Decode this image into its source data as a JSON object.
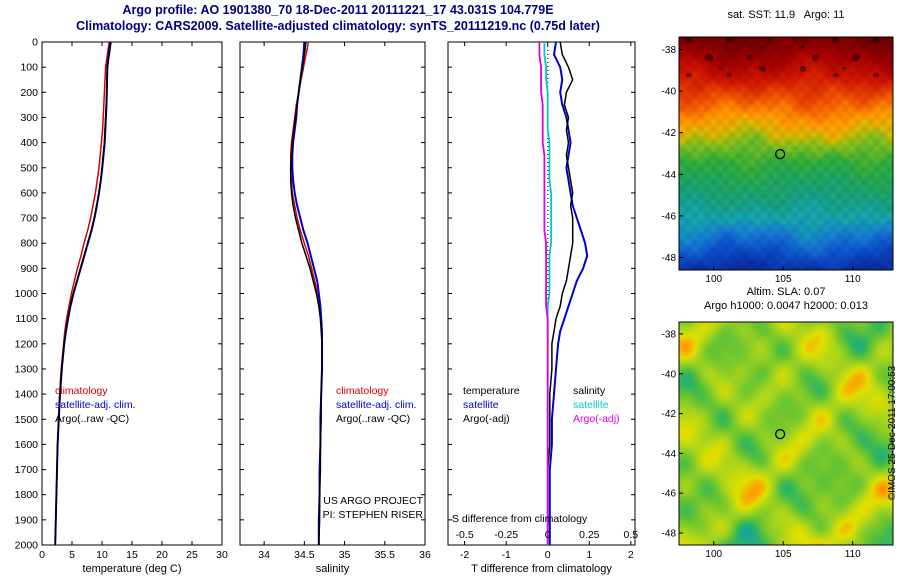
{
  "header": {
    "title_line1": "Argo profile: AO 1901380_70 18-Dec-2011 20111221_17 43.031S 104.779E",
    "title_line2": "Climatology: CARS2009. Satellite-adjusted climatology: synTS_20111219.nc (0.75d later)"
  },
  "watermark": "©IMOS 25-Dec-2011 17:00:53",
  "chart_data": [
    {
      "id": "temperature_profile",
      "type": "line",
      "xlabel": "temperature (deg C)",
      "xlim": [
        0,
        30
      ],
      "xticks": [
        0,
        5,
        10,
        15,
        20,
        25,
        30
      ],
      "ylim": [
        0,
        2000
      ],
      "y_inverted": true,
      "yticks": [
        0,
        100,
        200,
        300,
        400,
        500,
        600,
        700,
        800,
        900,
        1000,
        1100,
        1200,
        1300,
        1400,
        1500,
        1600,
        1700,
        1800,
        1900,
        2000
      ],
      "depths": [
        0,
        50,
        100,
        150,
        200,
        250,
        300,
        350,
        400,
        450,
        500,
        550,
        600,
        650,
        700,
        750,
        800,
        850,
        900,
        950,
        1000,
        1050,
        1100,
        1150,
        1200,
        1300,
        1400,
        1500,
        1600,
        1700,
        1800,
        1900,
        2000
      ],
      "series": [
        {
          "name": "climatology",
          "color": "#d40000",
          "lw": 1.5,
          "values": [
            11.2,
            10.9,
            10.6,
            10.5,
            10.4,
            10.3,
            10.2,
            10.1,
            9.9,
            9.7,
            9.5,
            9.2,
            8.9,
            8.5,
            8.1,
            7.6,
            7.0,
            6.5,
            5.9,
            5.4,
            4.9,
            4.5,
            4.1,
            3.8,
            3.6,
            3.2,
            2.95,
            2.75,
            2.6,
            2.5,
            2.4,
            2.3,
            2.2
          ]
        },
        {
          "name": "satellite-adj. clim.",
          "color": "#0000cc",
          "lw": 2,
          "values": [
            11.4,
            11.1,
            10.9,
            10.85,
            10.8,
            10.75,
            10.65,
            10.55,
            10.45,
            10.25,
            10.05,
            9.8,
            9.5,
            9.15,
            8.75,
            8.25,
            7.65,
            7.05,
            6.45,
            5.85,
            5.25,
            4.75,
            4.35,
            4.0,
            3.7,
            3.3,
            3.0,
            2.8,
            2.6,
            2.5,
            2.4,
            2.3,
            2.2
          ]
        },
        {
          "name": "Argo(..raw -QC)",
          "color": "#000000",
          "lw": 1.5,
          "values": [
            11.5,
            11.2,
            10.9,
            10.8,
            10.8,
            10.7,
            10.6,
            10.5,
            10.4,
            10.2,
            10.0,
            9.8,
            9.5,
            9.1,
            8.7,
            8.2,
            7.6,
            7.0,
            6.4,
            5.8,
            5.2,
            4.7,
            4.3,
            4.0,
            3.7,
            3.3,
            3.0,
            2.8,
            2.6,
            2.5,
            2.4,
            2.3,
            2.2
          ]
        }
      ]
    },
    {
      "id": "salinity_profile",
      "type": "line",
      "xlabel": "salinity",
      "xlim": [
        33.7,
        36.0
      ],
      "xticks": [
        34,
        34.5,
        35,
        35.5,
        36
      ],
      "ylim": [
        0,
        2000
      ],
      "y_inverted": true,
      "yticks": [
        0,
        100,
        200,
        300,
        400,
        500,
        600,
        700,
        800,
        900,
        1000,
        1100,
        1200,
        1300,
        1400,
        1500,
        1600,
        1700,
        1800,
        1900,
        2000
      ],
      "depths": [
        0,
        50,
        100,
        150,
        200,
        250,
        300,
        350,
        400,
        450,
        500,
        550,
        600,
        650,
        700,
        750,
        800,
        850,
        900,
        950,
        1000,
        1050,
        1100,
        1150,
        1200,
        1300,
        1400,
        1500,
        1600,
        1700,
        1800,
        1900,
        2000
      ],
      "annotations": [
        "US ARGO PROJECT",
        "PI: STEPHEN RISER"
      ],
      "series": [
        {
          "name": "climatology",
          "color": "#d40000",
          "lw": 1.5,
          "values": [
            34.55,
            34.52,
            34.49,
            34.46,
            34.43,
            34.4,
            34.38,
            34.36,
            34.34,
            34.33,
            34.33,
            34.34,
            34.35,
            34.38,
            34.41,
            34.45,
            34.5,
            34.55,
            34.59,
            34.63,
            34.66,
            34.69,
            34.71,
            34.72,
            34.72,
            34.72,
            34.71,
            34.7,
            34.7,
            34.69,
            34.69,
            34.68,
            34.68
          ]
        },
        {
          "name": "satellite-adj. clim.",
          "color": "#0000cc",
          "lw": 2,
          "values": [
            34.5,
            34.49,
            34.47,
            34.45,
            34.43,
            34.41,
            34.4,
            34.38,
            34.36,
            34.35,
            34.35,
            34.36,
            34.38,
            34.41,
            34.45,
            34.49,
            34.54,
            34.58,
            34.62,
            34.66,
            34.68,
            34.7,
            34.71,
            34.72,
            34.72,
            34.72,
            34.71,
            34.7,
            34.7,
            34.69,
            34.69,
            34.68,
            34.68
          ]
        },
        {
          "name": "Argo(..raw -QC)",
          "color": "#000000",
          "lw": 1.5,
          "values": [
            34.52,
            34.5,
            34.48,
            34.45,
            34.43,
            34.41,
            34.39,
            34.37,
            34.35,
            34.34,
            34.33,
            34.33,
            34.34,
            34.36,
            34.39,
            34.43,
            34.47,
            34.52,
            34.57,
            34.61,
            34.65,
            34.68,
            34.7,
            34.71,
            34.72,
            34.72,
            34.71,
            34.71,
            34.7,
            34.7,
            34.69,
            34.69,
            34.68
          ]
        }
      ]
    },
    {
      "id": "difference_profile",
      "type": "line",
      "xlabel": "T difference from climatology",
      "xlim": [
        -2.4,
        2.1
      ],
      "xticks": [
        -2,
        -1,
        0,
        1,
        2
      ],
      "ylim": [
        0,
        2000
      ],
      "y_inverted": true,
      "zero_line": true,
      "yticks": [
        0,
        100,
        200,
        300,
        400,
        500,
        600,
        700,
        800,
        900,
        1000,
        1100,
        1200,
        1300,
        1400,
        1500,
        1600,
        1700,
        1800,
        1900,
        2000
      ],
      "depths": [
        0,
        50,
        100,
        150,
        200,
        250,
        300,
        350,
        400,
        450,
        500,
        550,
        600,
        650,
        700,
        750,
        800,
        850,
        900,
        950,
        1000,
        1050,
        1100,
        1150,
        1200,
        1300,
        1400,
        1500,
        1600,
        1700,
        1800,
        1900,
        2000
      ],
      "s_axis": {
        "label": "S difference from climatology",
        "scale": 4,
        "ticks": [
          -0.5,
          -0.25,
          0,
          0.25,
          0.5
        ]
      },
      "legend_headers": [
        "temperature",
        "salinity"
      ],
      "series": [
        {
          "name": "satellite",
          "group": "temperature",
          "color": "#0000cc",
          "scale": 1,
          "lw": 2,
          "values": [
            0.2,
            0.15,
            0.3,
            0.35,
            0.3,
            0.35,
            0.45,
            0.5,
            0.55,
            0.5,
            0.45,
            0.5,
            0.55,
            0.6,
            0.7,
            0.8,
            0.9,
            0.95,
            0.85,
            0.7,
            0.6,
            0.5,
            0.4,
            0.3,
            0.25,
            0.2,
            0.15,
            0.1,
            0.1,
            0.05,
            0.05,
            0.05,
            0.05
          ]
        },
        {
          "name": "Argo(-adj)",
          "group": "temperature",
          "color": "#000000",
          "scale": 1,
          "lw": 1.5,
          "values": [
            0.3,
            0.35,
            0.5,
            0.6,
            0.45,
            0.4,
            0.5,
            0.45,
            0.5,
            0.45,
            0.5,
            0.55,
            0.6,
            0.55,
            0.6,
            0.6,
            0.6,
            0.55,
            0.5,
            0.45,
            0.35,
            0.3,
            0.2,
            0.15,
            0.1,
            0.1,
            0.05,
            0.05,
            0.05,
            0.0,
            0.0,
            0.0,
            0.0
          ]
        },
        {
          "name": "satellite",
          "group": "salinity",
          "color": "#00c8c8",
          "scale": 4,
          "lw": 1.8,
          "values": [
            -0.02,
            -0.02,
            -0.01,
            -0.01,
            0,
            0,
            0,
            0,
            0.01,
            0.01,
            0.01,
            0.01,
            0.02,
            0.02,
            0.02,
            0.02,
            0.02,
            0.01,
            0.01,
            0.01,
            0.01,
            0,
            0,
            0,
            0,
            0,
            0,
            0,
            0,
            0,
            0,
            0,
            0
          ]
        },
        {
          "name": "Argo(-adj)",
          "group": "salinity",
          "color": "#e000e0",
          "scale": 4,
          "lw": 1.8,
          "values": [
            -0.05,
            -0.05,
            -0.04,
            -0.04,
            -0.04,
            -0.03,
            -0.03,
            -0.03,
            -0.03,
            -0.02,
            -0.02,
            -0.02,
            -0.02,
            -0.02,
            -0.02,
            -0.02,
            -0.01,
            -0.01,
            -0.01,
            -0.01,
            -0.01,
            -0.01,
            0,
            0,
            0,
            0,
            0,
            0,
            0,
            0,
            0,
            0,
            0
          ]
        }
      ]
    },
    {
      "id": "sst_map",
      "type": "heatmap",
      "title": "sat. SST: 11.9   Argo: 11",
      "xlim": [
        97.5,
        112.9
      ],
      "ylim": [
        -48.6,
        -37.4
      ],
      "xticks": [
        100,
        105,
        110
      ],
      "yticks": [
        -38,
        -40,
        -42,
        -44,
        -46,
        -48
      ],
      "marker": {
        "lon": 104.779,
        "lat": -43.031
      },
      "lat_color_stops": [
        [
          -37.4,
          "#6e0000"
        ],
        [
          -38.4,
          "#a20000"
        ],
        [
          -39.4,
          "#cc1600"
        ],
        [
          -40.4,
          "#ee5200"
        ],
        [
          -41.3,
          "#ff9600"
        ],
        [
          -42.0,
          "#d2b400"
        ],
        [
          -42.6,
          "#7cba1e"
        ],
        [
          -43.4,
          "#30aa3a"
        ],
        [
          -44.4,
          "#1ea260"
        ],
        [
          -45.3,
          "#189c82"
        ],
        [
          -46.1,
          "#14a2aa"
        ],
        [
          -46.9,
          "#167ace"
        ],
        [
          -47.7,
          "#0c50c8"
        ],
        [
          -48.6,
          "#0a2ca2"
        ]
      ]
    },
    {
      "id": "sla_map",
      "type": "heatmap",
      "title_line1": "Altim. SLA: 0.07",
      "title_line2": "Argo h1000: 0.0047 h2000: 0.013",
      "xlim": [
        97.5,
        112.9
      ],
      "ylim": [
        -48.6,
        -37.4
      ],
      "xticks": [
        100,
        105,
        110
      ],
      "yticks": [
        -38,
        -40,
        -42,
        -44,
        -46,
        -48
      ],
      "marker": {
        "lon": 104.779,
        "lat": -43.031
      },
      "palette": [
        [
          -1,
          "#0a3cc8"
        ],
        [
          -0.65,
          "#0ca0b4"
        ],
        [
          -0.35,
          "#2cb464"
        ],
        [
          -0.1,
          "#66c432"
        ],
        [
          0.2,
          "#a6d41e"
        ],
        [
          0.5,
          "#e0e000"
        ],
        [
          0.75,
          "#ffa000"
        ],
        [
          1,
          "#e02800"
        ]
      ]
    }
  ]
}
